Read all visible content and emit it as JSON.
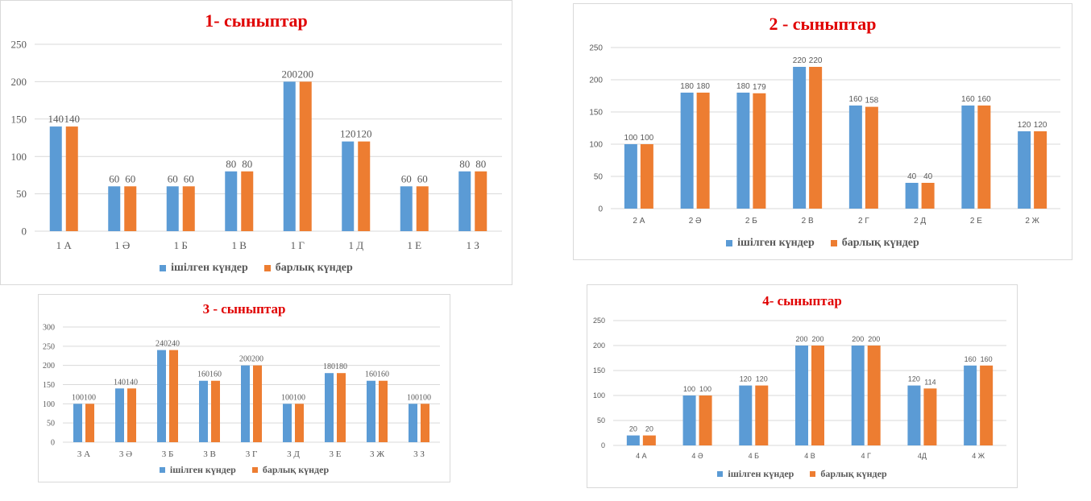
{
  "legend": {
    "s1": "ішілген күндер",
    "s2": "барлық күндер"
  },
  "colors": {
    "s1": "#5b9bd5",
    "s2": "#ed7d31",
    "title": "#e00000",
    "grid": "#d9d9d9",
    "text": "#595959"
  },
  "chart_data": [
    {
      "type": "bar",
      "title": "1- сыныптар",
      "categories": [
        "1 А",
        "1 Ә",
        "1 Б",
        "1 В",
        "1 Г",
        "1 Д",
        "1 Е",
        "1 З"
      ],
      "series": [
        {
          "name": "ішілген күндер",
          "values": [
            140,
            60,
            60,
            80,
            200,
            120,
            60,
            80
          ]
        },
        {
          "name": "барлық күндер",
          "values": [
            140,
            60,
            60,
            80,
            200,
            120,
            60,
            80
          ]
        }
      ],
      "ylim": [
        0,
        250
      ],
      "yticks": [
        0,
        50,
        100,
        150,
        200,
        250
      ],
      "grid": true,
      "legend_position": "bottom"
    },
    {
      "type": "bar",
      "title": "2 - сыныптар",
      "categories": [
        "2 А",
        "2 Ә",
        "2 Б",
        "2 В",
        "2 Г",
        "2 Д",
        "2 Е",
        "2 Ж"
      ],
      "series": [
        {
          "name": "ішілген күндер",
          "values": [
            100,
            180,
            180,
            220,
            160,
            40,
            160,
            120
          ]
        },
        {
          "name": "барлық күндер",
          "values": [
            100,
            180,
            179,
            220,
            158,
            40,
            160,
            120
          ]
        }
      ],
      "ylim": [
        0,
        250
      ],
      "yticks": [
        0,
        50,
        100,
        150,
        200,
        250
      ],
      "grid": true,
      "legend_position": "bottom"
    },
    {
      "type": "bar",
      "title": "3 - сыныптар",
      "categories": [
        "3 А",
        "3 Ә",
        "3 Б",
        "3 В",
        "3 Г",
        "3 Д",
        "3 Е",
        "3 Ж",
        "3 З"
      ],
      "series": [
        {
          "name": "ішілген күндер",
          "values": [
            100,
            140,
            240,
            160,
            200,
            100,
            180,
            160,
            100
          ]
        },
        {
          "name": "барлық күндер",
          "values": [
            100,
            140,
            240,
            160,
            200,
            100,
            180,
            160,
            100
          ]
        }
      ],
      "ylim": [
        0,
        300
      ],
      "yticks": [
        0,
        50,
        100,
        150,
        200,
        250,
        300
      ],
      "grid": true,
      "legend_position": "bottom"
    },
    {
      "type": "bar",
      "title": "4- сыныптар",
      "categories": [
        "4 А",
        "4 Ә",
        "4 Б",
        "4 В",
        "4 Г",
        "4Д",
        "4 Ж"
      ],
      "series": [
        {
          "name": "ішілген күндер",
          "values": [
            20,
            100,
            120,
            200,
            200,
            120,
            160
          ]
        },
        {
          "name": "барлық күндер",
          "values": [
            20,
            100,
            120,
            200,
            200,
            114,
            160
          ]
        }
      ],
      "ylim": [
        0,
        250
      ],
      "yticks": [
        0,
        50,
        100,
        150,
        200,
        250
      ],
      "grid": true,
      "legend_position": "bottom"
    }
  ]
}
